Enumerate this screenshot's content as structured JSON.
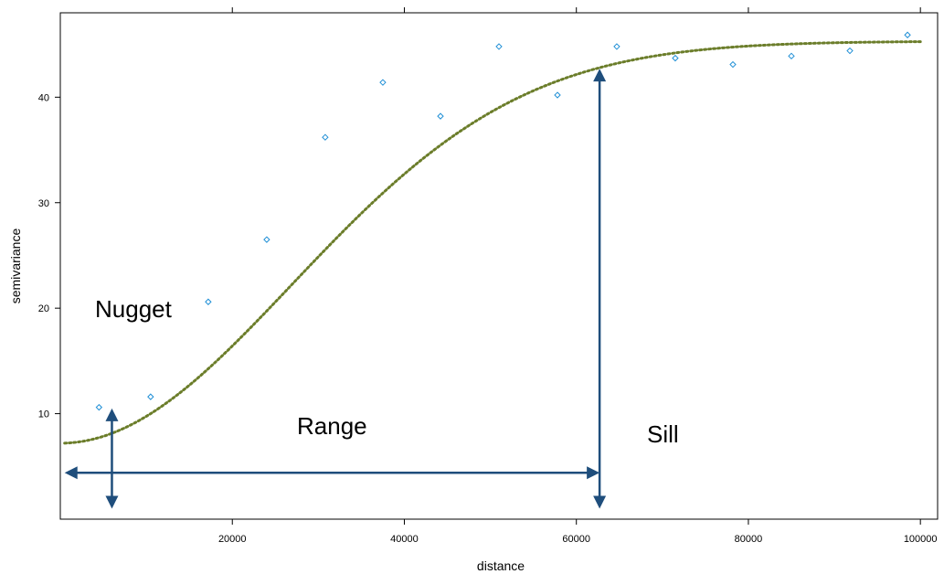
{
  "chart_data": {
    "type": "scatter",
    "xlabel": "distance",
    "ylabel": "semivariance",
    "xlim": [
      0,
      102000
    ],
    "ylim": [
      0,
      48
    ],
    "x_ticks": [
      20000,
      40000,
      60000,
      80000,
      100000
    ],
    "x_tick_labels": [
      "20000",
      "40000",
      "60000",
      "80000",
      "100000"
    ],
    "y_ticks": [
      10,
      20,
      30,
      40
    ],
    "y_tick_labels": [
      "10",
      "20",
      "30",
      "40"
    ],
    "grid": false,
    "points": [
      {
        "x": 4500,
        "y": 10.6
      },
      {
        "x": 10500,
        "y": 11.6
      },
      {
        "x": 17200,
        "y": 20.6
      },
      {
        "x": 24000,
        "y": 26.5
      },
      {
        "x": 30800,
        "y": 36.2
      },
      {
        "x": 37500,
        "y": 41.4
      },
      {
        "x": 44200,
        "y": 38.2
      },
      {
        "x": 51000,
        "y": 44.8
      },
      {
        "x": 57800,
        "y": 40.2
      },
      {
        "x": 64700,
        "y": 44.8
      },
      {
        "x": 71500,
        "y": 43.7
      },
      {
        "x": 78200,
        "y": 43.1
      },
      {
        "x": 85000,
        "y": 43.9
      },
      {
        "x": 91800,
        "y": 44.4
      },
      {
        "x": 98500,
        "y": 45.9
      }
    ],
    "fitted_model": {
      "form": "gaussian",
      "nugget": 7.2,
      "sill": 45.3,
      "range": 38000,
      "x_from": 500,
      "x_to": 100000
    },
    "annotations": {
      "nugget_label": "Nugget",
      "range_label": "Range",
      "sill_label": "Sill"
    },
    "arrows": {
      "nugget_arrow": {
        "x": 6000,
        "y_from": 1.0,
        "y_to": 10.5
      },
      "range_arrow": {
        "y": 4.4,
        "x_from": 500,
        "x_to": 62700
      },
      "sill_arrow": {
        "x": 62700,
        "y_from": 1.0,
        "y_to": 42.7
      }
    },
    "colors": {
      "points": "#1f8fd6",
      "curve": "#6b7d2a",
      "arrows": "#1f4e7c",
      "frame": "#000000"
    }
  }
}
